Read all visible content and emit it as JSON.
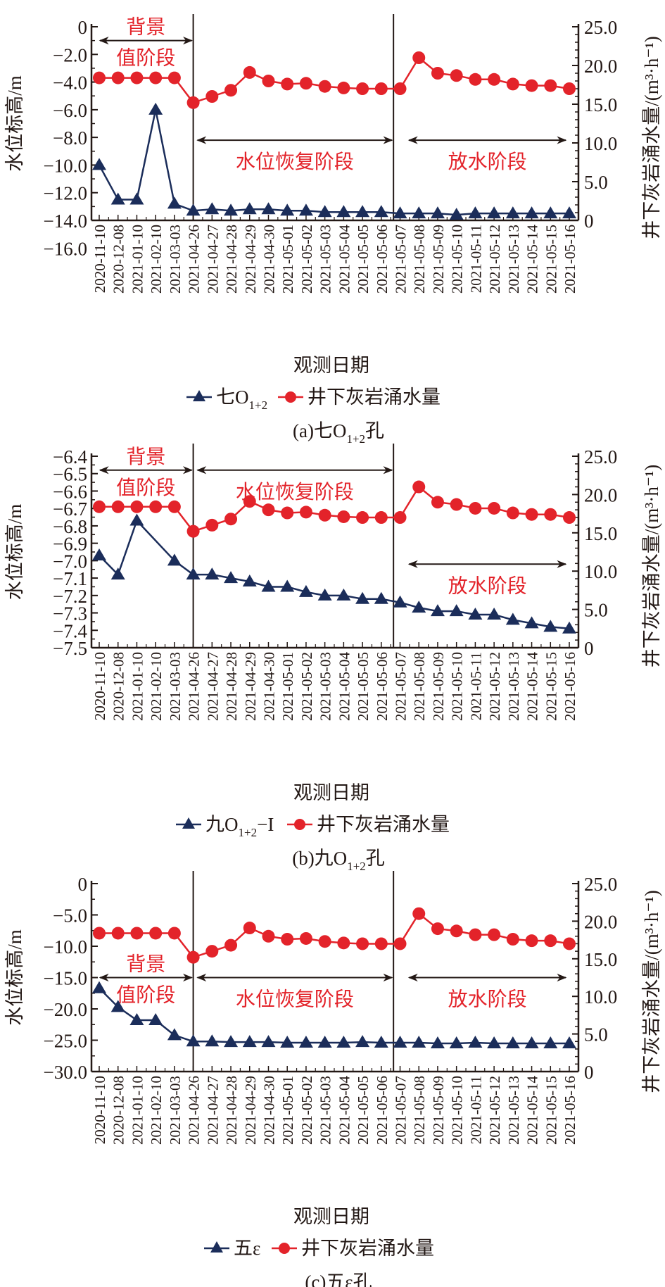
{
  "chart_data": [
    {
      "type": "line",
      "panel_caption": "(a)七O1+2孔",
      "caption_parts": {
        "prefix": "(a)七O",
        "sub": "1+2",
        "suffix": "孔"
      },
      "xlabel": "观测日期",
      "ylabel_left": "水位标高/m",
      "ylabel_right": "井下灰岩涌水量/(m³·h⁻¹)",
      "y_left_lim": [
        -16.0,
        0
      ],
      "y_left_axis_min": -14.0,
      "y_left_ticks": [
        "0",
        "−2.0",
        "−4.0",
        "−6.0",
        "−8.0",
        "−10.0",
        "−12.0",
        "−14.0",
        "−16.0"
      ],
      "y_left_tick_values": [
        0,
        -2,
        -4,
        -6,
        -8,
        -10,
        -12,
        -14,
        -16
      ],
      "y_right_lim": [
        0,
        25.0
      ],
      "y_right_ticks": [
        "25.0",
        "20.0",
        "15.0",
        "10.0",
        "5.0",
        "0"
      ],
      "y_right_tick_values": [
        25,
        20,
        15,
        10,
        5,
        0
      ],
      "categories": [
        "2020-11-10",
        "2020-12-08",
        "2021-01-10",
        "2021-02-10",
        "2021-03-03",
        "2021-04-26",
        "2021-04-27",
        "2021-04-28",
        "2021-04-29",
        "2021-04-30",
        "2021-05-01",
        "2021-05-02",
        "2021-05-03",
        "2021-05-04",
        "2021-05-05",
        "2021-05-06",
        "2021-05-07",
        "2021-05-08",
        "2021-05-09",
        "2021-05-10",
        "2021-05-11",
        "2021-05-12",
        "2021-05-13",
        "2021-05-14",
        "2021-05-15",
        "2021-05-16"
      ],
      "series": [
        {
          "name": "七O1+2",
          "name_parts": {
            "main": "七O",
            "sub": "1+2",
            "tail": ""
          },
          "axis": "left",
          "marker": "triangle",
          "color": "#1b2d5a",
          "values": [
            -10.0,
            -12.5,
            -12.5,
            -6.0,
            -12.8,
            -13.3,
            -13.2,
            -13.3,
            -13.2,
            -13.2,
            -13.3,
            -13.3,
            -13.4,
            -13.4,
            -13.4,
            -13.4,
            -13.5,
            -13.5,
            -13.5,
            -13.6,
            -13.5,
            -13.5,
            -13.5,
            -13.5,
            -13.5,
            -13.5
          ]
        },
        {
          "name": "井下灰岩涌水量",
          "axis": "right",
          "marker": "circle",
          "color": "#e3232a",
          "values": [
            18.4,
            18.4,
            18.4,
            18.4,
            18.4,
            15.2,
            16.0,
            16.8,
            19.1,
            18.0,
            17.6,
            17.7,
            17.3,
            17.1,
            17.0,
            17.0,
            17.0,
            21.0,
            19.0,
            18.7,
            18.2,
            18.2,
            17.6,
            17.4,
            17.4,
            17.0
          ]
        }
      ],
      "stages": [
        {
          "label_lines": [
            "背景",
            "值阶段"
          ],
          "from": "2020-11-10",
          "to": "2021-04-26",
          "arrow_value_left": -1.0
        },
        {
          "label_lines": [
            "水位恢复阶段"
          ],
          "from": "2021-04-26",
          "to": "2021-05-07",
          "arrow_value_left": -8.2
        },
        {
          "label_lines": [
            "放水阶段"
          ],
          "from": "2021-05-07",
          "to": "2021-05-16",
          "arrow_value_left": -8.2
        }
      ],
      "dividers": [
        "2021-04-26",
        "2021-05-07"
      ]
    },
    {
      "type": "line",
      "panel_caption": "(b)九O1+2孔",
      "caption_parts": {
        "prefix": "(b)九O",
        "sub": "1+2",
        "suffix": "孔"
      },
      "xlabel": "观测日期",
      "ylabel_left": "水位标高/m",
      "ylabel_right": "井下灰岩涌水量/(m³·h⁻¹)",
      "y_left_lim": [
        -7.5,
        -6.4
      ],
      "y_left_axis_min": -7.5,
      "y_left_ticks": [
        "−6.4",
        "−6.5",
        "−6.6",
        "−6.7",
        "−6.8",
        "−6.9",
        "−7.0",
        "−7.1",
        "−7.2",
        "−7.3",
        "−7.4",
        "−7.5"
      ],
      "y_left_tick_values": [
        -6.4,
        -6.5,
        -6.6,
        -6.7,
        -6.8,
        -6.9,
        -7.0,
        -7.1,
        -7.2,
        -7.3,
        -7.4,
        -7.5
      ],
      "y_right_lim": [
        0,
        25.0
      ],
      "y_right_ticks": [
        "25.0",
        "20.0",
        "15.0",
        "10.0",
        "5.0",
        "0"
      ],
      "y_right_tick_values": [
        25,
        20,
        15,
        10,
        5,
        0
      ],
      "categories": [
        "2020-11-10",
        "2020-12-08",
        "2021-01-10",
        "2021-02-10",
        "2021-03-03",
        "2021-04-26",
        "2021-04-27",
        "2021-04-28",
        "2021-04-29",
        "2021-04-30",
        "2021-05-01",
        "2021-05-02",
        "2021-05-03",
        "2021-05-04",
        "2021-05-05",
        "2021-05-06",
        "2021-05-07",
        "2021-05-08",
        "2021-05-09",
        "2021-05-10",
        "2021-05-11",
        "2021-05-12",
        "2021-05-13",
        "2021-05-14",
        "2021-05-15",
        "2021-05-16"
      ],
      "series": [
        {
          "name": "九O1+2−I",
          "name_parts": {
            "main": "九O",
            "sub": "1+2",
            "tail": "−I"
          },
          "axis": "left",
          "marker": "triangle",
          "color": "#1b2d5a",
          "values": [
            -6.97,
            -7.08,
            -6.77,
            null,
            -7.0,
            -7.08,
            -7.08,
            -7.1,
            -7.12,
            -7.15,
            -7.15,
            -7.18,
            -7.2,
            -7.2,
            -7.22,
            -7.22,
            -7.24,
            -7.27,
            -7.29,
            -7.29,
            -7.31,
            -7.31,
            -7.34,
            -7.36,
            -7.38,
            -7.39
          ]
        },
        {
          "name": "井下灰岩涌水量",
          "axis": "right",
          "marker": "circle",
          "color": "#e3232a",
          "values": [
            18.4,
            18.4,
            18.4,
            18.4,
            18.4,
            15.2,
            16.0,
            16.8,
            19.1,
            18.0,
            17.6,
            17.7,
            17.3,
            17.1,
            17.0,
            17.0,
            17.0,
            21.0,
            19.0,
            18.7,
            18.2,
            18.2,
            17.6,
            17.4,
            17.4,
            17.0
          ]
        }
      ],
      "stages": [
        {
          "label_lines": [
            "背景",
            "值阶段"
          ],
          "from": "2020-11-10",
          "to": "2021-04-26",
          "arrow_value_left": -6.48
        },
        {
          "label_lines": [
            "水位恢复阶段"
          ],
          "from": "2021-04-26",
          "to": "2021-05-07",
          "arrow_value_left": -6.48
        },
        {
          "label_lines": [
            "放水阶段"
          ],
          "from": "2021-05-07",
          "to": "2021-05-16",
          "arrow_value_left": -7.02
        }
      ],
      "dividers": [
        "2021-04-26",
        "2021-05-07"
      ]
    },
    {
      "type": "line",
      "panel_caption": "(c)五ε孔",
      "caption_parts": {
        "prefix": "(c)五ε",
        "sub": "",
        "suffix": "孔"
      },
      "xlabel": "观测日期",
      "ylabel_left": "水位标高/m",
      "ylabel_right": "井下灰岩涌水量/(m³·h⁻¹)",
      "y_left_lim": [
        -30.0,
        0
      ],
      "y_left_axis_min": -30.0,
      "y_left_ticks": [
        "0",
        "−5.0",
        "−10.0",
        "−15.0",
        "−20.0",
        "−25.0",
        "−30.0"
      ],
      "y_left_tick_values": [
        0,
        -5,
        -10,
        -15,
        -20,
        -25,
        -30
      ],
      "y_right_lim": [
        0,
        25.0
      ],
      "y_right_ticks": [
        "25.0",
        "20.0",
        "15.0",
        "10.0",
        "5.0",
        "0"
      ],
      "y_right_tick_values": [
        25,
        20,
        15,
        10,
        5,
        0
      ],
      "categories": [
        "2020-11-10",
        "2020-12-08",
        "2021-01-10",
        "2021-02-10",
        "2021-03-03",
        "2021-04-26",
        "2021-04-27",
        "2021-04-28",
        "2021-04-29",
        "2021-04-30",
        "2021-05-01",
        "2021-05-02",
        "2021-05-03",
        "2021-05-04",
        "2021-05-05",
        "2021-05-06",
        "2021-05-07",
        "2021-05-08",
        "2021-05-09",
        "2021-05-10",
        "2021-05-11",
        "2021-05-12",
        "2021-05-13",
        "2021-05-14",
        "2021-05-15",
        "2021-05-16"
      ],
      "series": [
        {
          "name": "五ε",
          "name_parts": {
            "main": "五ε",
            "sub": "",
            "tail": ""
          },
          "axis": "left",
          "marker": "triangle",
          "color": "#1b2d5a",
          "values": [
            -16.7,
            -19.7,
            -21.8,
            -21.8,
            -24.2,
            -25.2,
            -25.2,
            -25.3,
            -25.3,
            -25.3,
            -25.4,
            -25.4,
            -25.4,
            -25.4,
            -25.3,
            -25.4,
            -25.4,
            -25.4,
            -25.5,
            -25.5,
            -25.4,
            -25.5,
            -25.5,
            -25.5,
            -25.5,
            -25.5
          ]
        },
        {
          "name": "井下灰岩涌水量",
          "axis": "right",
          "marker": "circle",
          "color": "#e3232a",
          "values": [
            18.4,
            18.4,
            18.4,
            18.4,
            18.4,
            15.2,
            16.0,
            16.8,
            19.1,
            18.0,
            17.6,
            17.7,
            17.3,
            17.1,
            17.0,
            17.0,
            17.0,
            21.0,
            19.0,
            18.7,
            18.2,
            18.2,
            17.6,
            17.4,
            17.4,
            17.0
          ]
        }
      ],
      "stages": [
        {
          "label_lines": [
            "背景",
            "值阶段"
          ],
          "from": "2020-11-10",
          "to": "2021-04-26",
          "arrow_value_left": -15.0
        },
        {
          "label_lines": [
            "水位恢复阶段"
          ],
          "from": "2021-04-26",
          "to": "2021-05-07",
          "arrow_value_left": -15.0
        },
        {
          "label_lines": [
            "放水阶段"
          ],
          "from": "2021-05-07",
          "to": "2021-05-16",
          "arrow_value_left": -15.0
        }
      ],
      "dividers": [
        "2021-04-26",
        "2021-05-07"
      ]
    }
  ]
}
